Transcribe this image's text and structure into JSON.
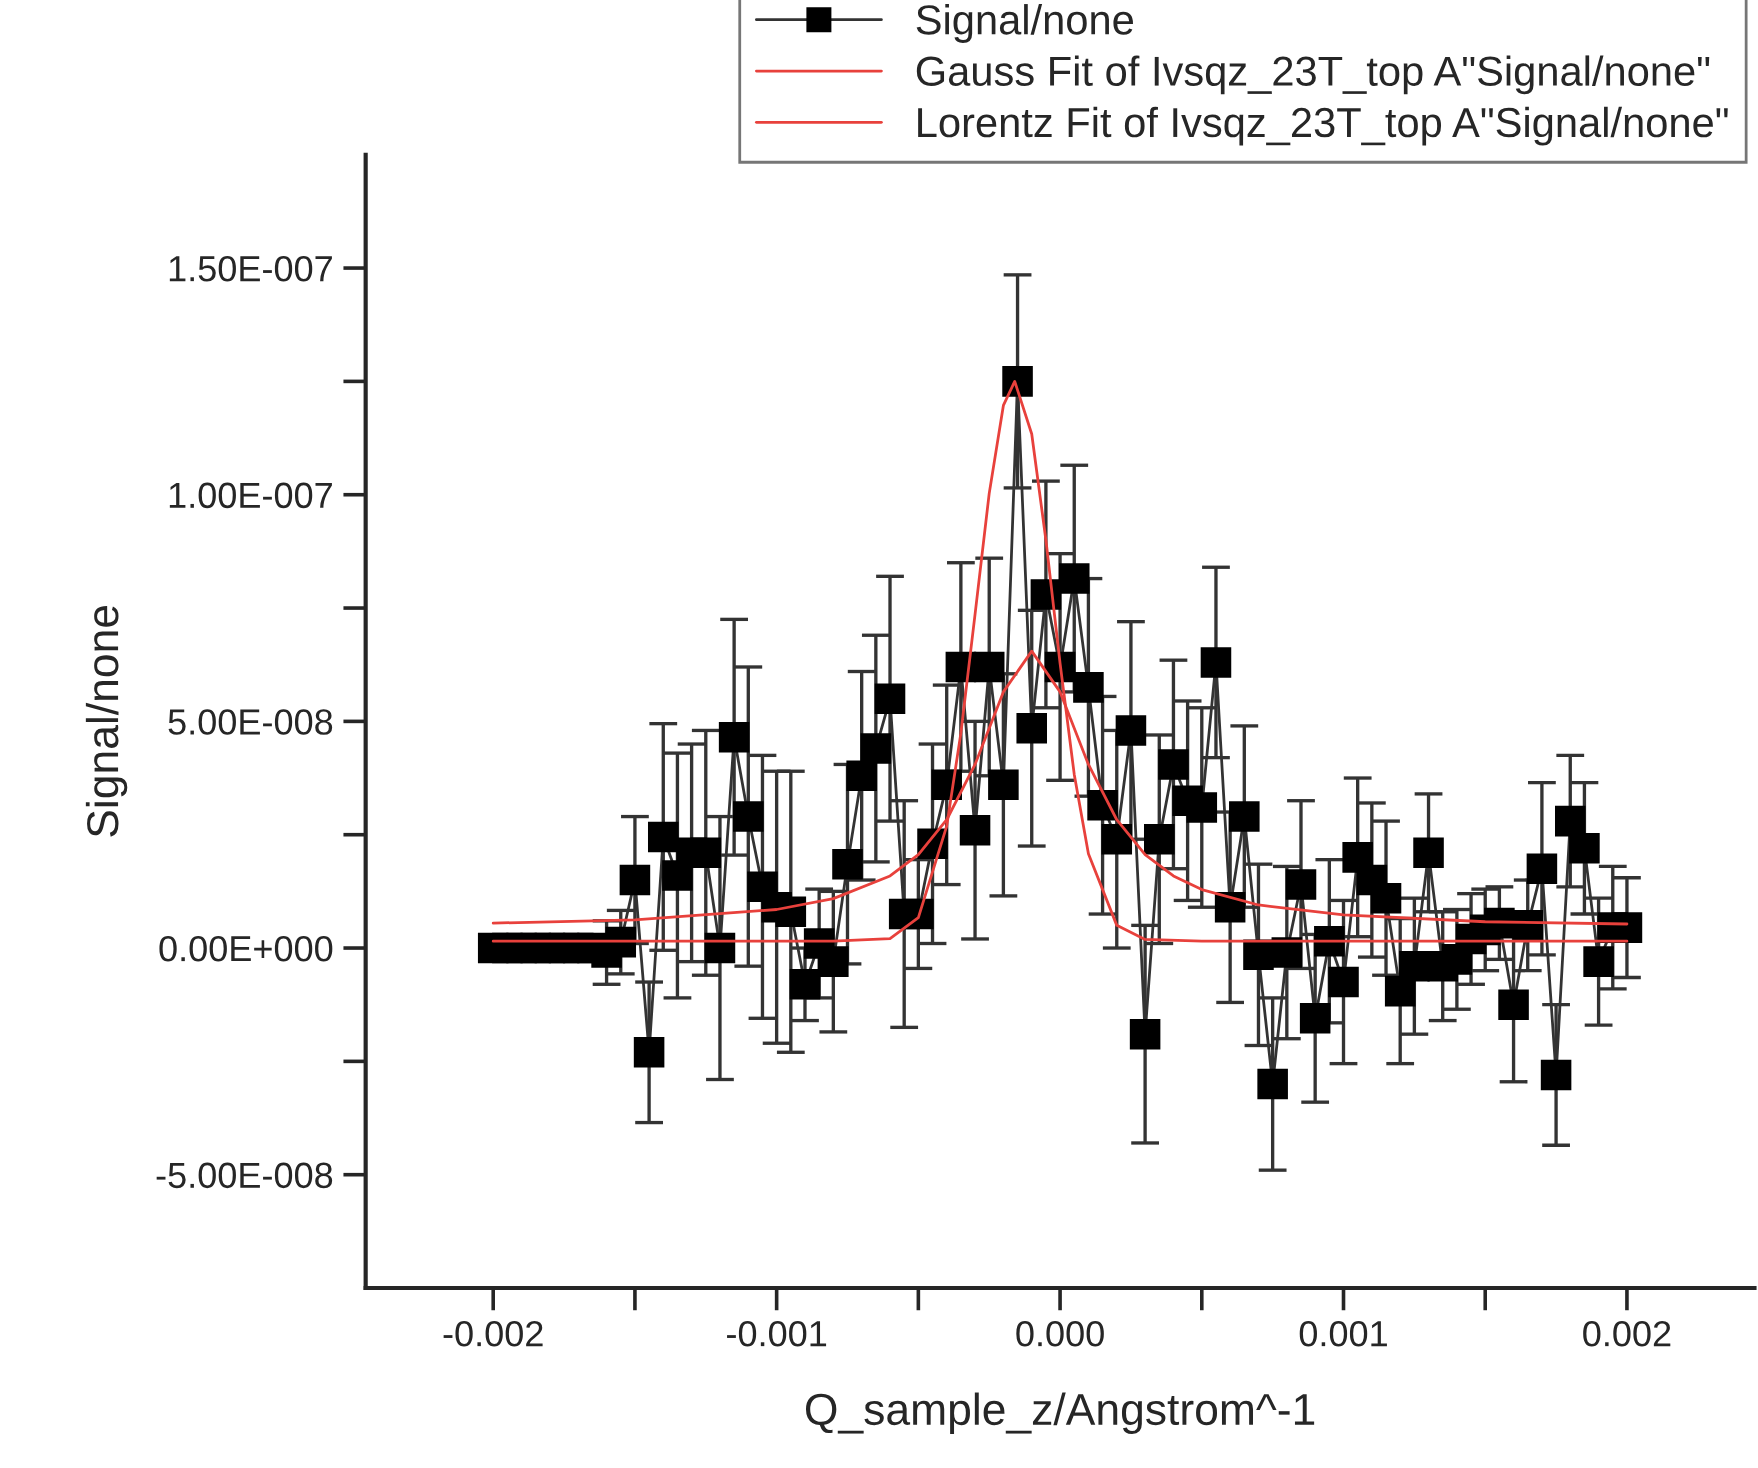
{
  "chart_data": {
    "type": "line",
    "xlabel": "Q_sample_z/Angstrom^-1",
    "ylabel": "Signal/none",
    "xlim": [
      -0.00245,
      0.00245
    ],
    "ylim": [
      -7.5e-08,
      1.75e-07
    ],
    "xticks": [
      {
        "value": -0.002,
        "label": "-0.002"
      },
      {
        "value": -0.0015,
        "label": null
      },
      {
        "value": -0.001,
        "label": "-0.001"
      },
      {
        "value": -0.0005,
        "label": null
      },
      {
        "value": 0,
        "label": "0.000"
      },
      {
        "value": 0.0005,
        "label": null
      },
      {
        "value": 0.001,
        "label": "0.001"
      },
      {
        "value": 0.0015,
        "label": null
      },
      {
        "value": 0.002,
        "label": "0.002"
      }
    ],
    "yticks": [
      {
        "value": -5e-08,
        "label": "-5.00E-008"
      },
      {
        "value": -2.5e-08,
        "label": null
      },
      {
        "value": 0,
        "label": "0.00E+000"
      },
      {
        "value": 2.5e-08,
        "label": null
      },
      {
        "value": 5e-08,
        "label": "5.00E-008"
      },
      {
        "value": 7.5e-08,
        "label": null
      },
      {
        "value": 1e-07,
        "label": "1.00E-007"
      },
      {
        "value": 1.25e-07,
        "label": null
      },
      {
        "value": 1.5e-07,
        "label": "1.50E-007"
      }
    ],
    "legend": "top right",
    "grid": false,
    "series": [
      {
        "name": "Signal/none",
        "color": "#000000",
        "marker": "square",
        "line_style": "solid",
        "x": [
          -0.002,
          -0.00195,
          -0.0019,
          -0.00185,
          -0.0018,
          -0.00175,
          -0.0017,
          -0.00165,
          -0.0016,
          -0.00155,
          -0.0015,
          -0.00145,
          -0.0014,
          -0.00135,
          -0.0013,
          -0.00125,
          -0.0012,
          -0.00115,
          -0.0011,
          -0.00105,
          -0.001,
          -0.00095,
          -0.0009,
          -0.00085,
          -0.0008,
          -0.00075,
          -0.0007,
          -0.00065,
          -0.0006,
          -0.00055,
          -0.0005,
          -0.00045,
          -0.0004,
          -0.00035,
          -0.0003,
          -0.00025,
          -0.0002,
          -0.00015,
          -0.0001,
          -5e-05,
          0,
          5e-05,
          0.0001,
          0.00015,
          0.0002,
          0.00025,
          0.0003,
          0.00035,
          0.0004,
          0.00045,
          0.0005,
          0.00055,
          0.0006,
          0.00065,
          0.0007,
          0.00075,
          0.0008,
          0.00085,
          0.0009,
          0.00095,
          0.001,
          0.00105,
          0.0011,
          0.00115,
          0.0012,
          0.00125,
          0.0013,
          0.00135,
          0.0014,
          0.00145,
          0.0015,
          0.00155,
          0.0016,
          0.00165,
          0.0017,
          0.00175,
          0.0018,
          0.00185,
          0.0019,
          0.00195,
          0.002
        ],
        "values": [
          0,
          0,
          0,
          0,
          0,
          0,
          0,
          0,
          -1e-09,
          1.3e-09,
          1.5e-08,
          -2.3e-08,
          2.45e-08,
          1.6e-08,
          2.1e-08,
          2.1e-08,
          0,
          4.65e-08,
          2.9e-08,
          1.35e-08,
          9e-09,
          8e-09,
          -8e-09,
          1e-09,
          -3e-09,
          1.85e-08,
          3.8e-08,
          4.4e-08,
          5.5e-08,
          7.5e-09,
          7.5e-09,
          2.3e-08,
          3.6e-08,
          6.2e-08,
          2.6e-08,
          6.2e-08,
          3.6e-08,
          1.25e-07,
          4.85e-08,
          7.8e-08,
          6.2e-08,
          8.15e-08,
          5.75e-08,
          3.15e-08,
          2.4e-08,
          4.8e-08,
          -1.9e-08,
          2.4e-08,
          4.05e-08,
          3.25e-08,
          3.1e-08,
          6.3e-08,
          9e-09,
          2.9e-08,
          -1.5e-09,
          -3e-08,
          -1e-09,
          1.4e-08,
          -1.55e-08,
          1.5e-09,
          -7.5e-09,
          2e-08,
          1.5e-08,
          1.1e-08,
          -9.5e-09,
          -4e-09,
          2.1e-08,
          -4e-09,
          -2.5e-09,
          2e-09,
          4e-09,
          5.5e-09,
          -1.25e-08,
          5e-09,
          1.75e-08,
          -2.8e-08,
          2.8e-08,
          2.2e-08,
          -3e-09,
          4.5e-09,
          4.5e-09
        ],
        "errors": [
          null,
          null,
          null,
          null,
          null,
          null,
          null,
          null,
          7e-09,
          7e-09,
          1.4e-08,
          1.55e-08,
          2.5e-08,
          2.7e-08,
          2.4e-08,
          2.7e-08,
          2.9e-08,
          2.6e-08,
          3.3e-08,
          2.9e-08,
          3e-08,
          3.1e-08,
          8e-09,
          1.2e-08,
          1.55e-08,
          2.2e-08,
          2.3e-08,
          2.5e-08,
          2.7e-08,
          2.5e-08,
          1.2e-08,
          2.2e-08,
          2.2e-08,
          2.3e-08,
          2.4e-08,
          2.4e-08,
          2.45e-08,
          2.35e-08,
          2.6e-08,
          2.5e-08,
          2.5e-08,
          2.5e-08,
          2.4e-08,
          2.4e-08,
          2.4e-08,
          2.4e-08,
          2.4e-08,
          2.3e-08,
          2.3e-08,
          2.2e-08,
          2.2e-08,
          2.1e-08,
          2.1e-08,
          2e-08,
          2e-08,
          1.9e-08,
          1.9e-08,
          1.85e-08,
          1.85e-08,
          1.8e-08,
          1.8e-08,
          1.75e-08,
          1.7e-08,
          1.7e-08,
          1.6e-08,
          1.5e-08,
          1.3e-08,
          1.2e-08,
          1.1e-08,
          1e-08,
          9e-09,
          8e-09,
          1.7e-08,
          1e-08,
          1.9e-08,
          1.55e-08,
          1.45e-08,
          1.45e-08,
          1.4e-08,
          1.35e-08,
          1.1e-08
        ]
      },
      {
        "name": "Gauss Fit of Ivsqz_23T_top A\"Signal/none\"",
        "color": "#e8413c",
        "marker": "none",
        "line_style": "solid",
        "x": [
          -0.002,
          -0.0008,
          -0.0006,
          -0.0005,
          -0.0004,
          -0.00035,
          -0.0003,
          -0.00025,
          -0.0002,
          -0.00016,
          -0.0001,
          -5e-05,
          0,
          5e-05,
          0.0001,
          0.0002,
          0.0003,
          0.0005,
          0.002
        ],
        "values": [
          1.5e-09,
          1.5e-09,
          2.1e-09,
          6.7e-09,
          2.69e-08,
          4.74e-08,
          7.36e-08,
          1.003e-07,
          1.197e-07,
          1.25e-07,
          1.134e-07,
          9e-08,
          6.28e-08,
          3.83e-08,
          2.08e-08,
          5e-09,
          1.9e-09,
          1.5e-09,
          1.5e-09
        ]
      },
      {
        "name": "Lorentz Fit of Ivsqz_23T_top A\"Signal/none\"",
        "color": "#e8413c",
        "marker": "none",
        "line_style": "solid",
        "x": [
          -0.002,
          -0.0015,
          -0.001,
          -0.0008,
          -0.0006,
          -0.0005,
          -0.0004,
          -0.0003,
          -0.0002,
          -0.0001,
          0,
          0.0001,
          0.0002,
          0.0003,
          0.0004,
          0.0005,
          0.0007,
          0.001,
          0.0015,
          0.002
        ],
        "values": [
          5.5e-09,
          6.2e-09,
          8.5e-09,
          1.09e-08,
          1.59e-08,
          2.06e-08,
          2.83e-08,
          4.05e-08,
          5.65e-08,
          6.55e-08,
          5.65e-08,
          4.05e-08,
          2.83e-08,
          2.06e-08,
          1.59e-08,
          1.29e-08,
          9.5e-09,
          7.3e-09,
          5.8e-09,
          5.3e-09
        ]
      }
    ]
  }
}
